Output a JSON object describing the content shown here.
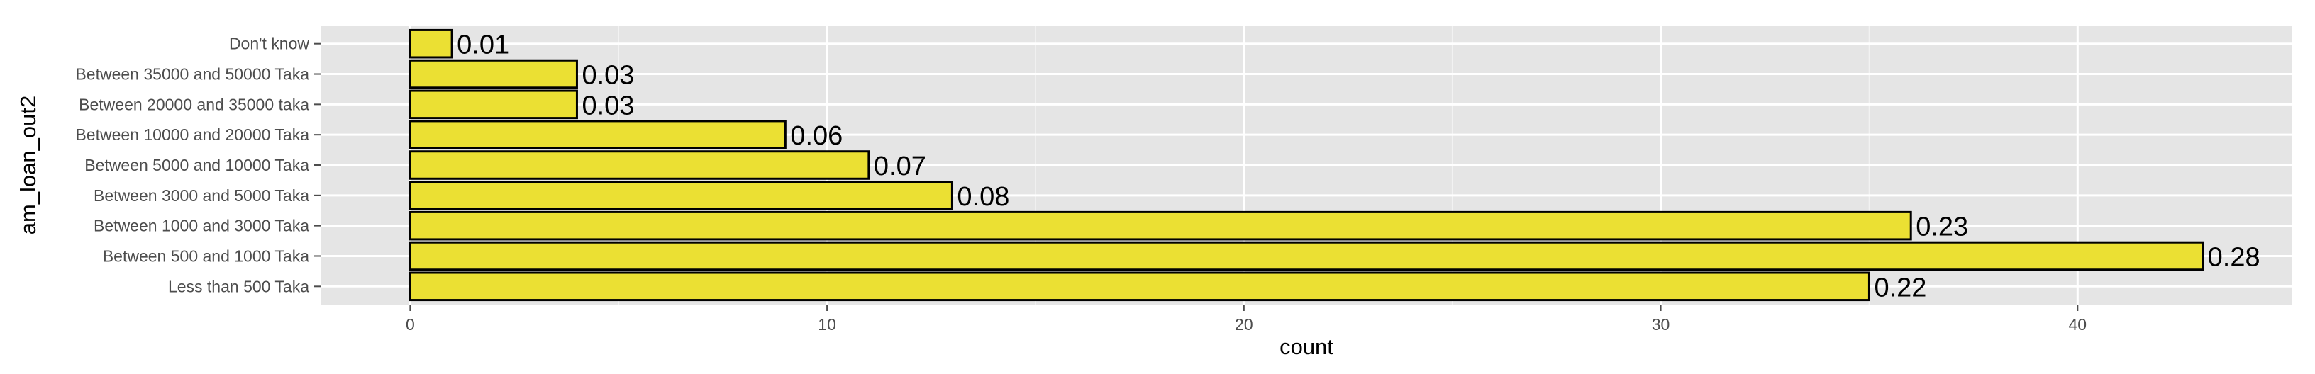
{
  "chart_data": {
    "type": "bar",
    "orientation": "horizontal",
    "xlabel": "count",
    "ylabel": "am_loan_out2",
    "xlim": [
      -2.15,
      45.15
    ],
    "x_ticks": [
      0,
      10,
      20,
      30,
      40
    ],
    "grid": true,
    "legend": "none",
    "categories": [
      "Less than 500 Taka",
      "Between 500 and 1000 Taka",
      "Between 1000 and 3000 Taka",
      "Between 3000 and 5000 Taka",
      "Between 5000 and 10000 Taka",
      "Between 10000 and 20000 Taka",
      "Between 20000 and 35000 taka",
      "Between 35000 and 50000 Taka",
      "Don't know"
    ],
    "values": [
      35,
      43,
      36,
      13,
      11,
      9,
      4,
      4,
      1
    ],
    "bar_labels": [
      "0.22",
      "0.28",
      "0.23",
      "0.08",
      "0.07",
      "0.06",
      "0.03",
      "0.03",
      "0.01"
    ],
    "colors": {
      "bar_fill": "#ebe033",
      "bar_stroke": "#000000",
      "panel_bg": "#e5e5e5",
      "grid_major": "#ffffff",
      "grid_minor": "#f2f2f2"
    }
  }
}
